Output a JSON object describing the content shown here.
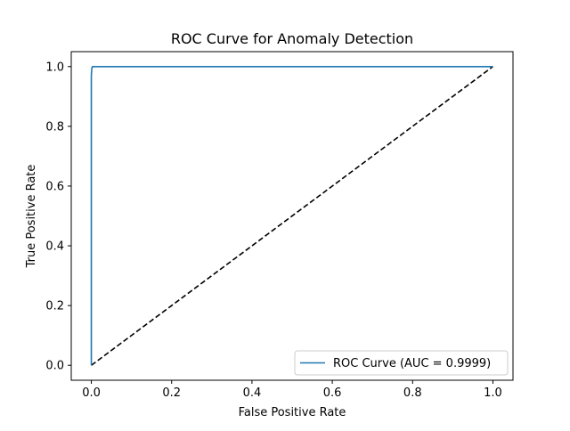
{
  "chart_data": {
    "type": "line",
    "title": "ROC Curve for Anomaly Detection",
    "xlabel": "False Positive Rate",
    "ylabel": "True Positive Rate",
    "xlim": [
      -0.05,
      1.05
    ],
    "ylim": [
      -0.05,
      1.05
    ],
    "xticks": [
      "0.0",
      "0.2",
      "0.4",
      "0.6",
      "0.8",
      "1.0"
    ],
    "yticks": [
      "0.0",
      "0.2",
      "0.4",
      "0.6",
      "0.8",
      "1.0"
    ],
    "grid": false,
    "legend_position": "lower-right",
    "series": [
      {
        "name": "ROC Curve (AUC = 0.9999)",
        "color": "#1f77b4",
        "style": "solid",
        "x": [
          0.0,
          0.0,
          0.001,
          0.002,
          0.003,
          1.0
        ],
        "y": [
          0.0,
          0.97,
          0.99,
          0.998,
          1.0,
          1.0
        ]
      },
      {
        "name": "",
        "color": "#000000",
        "style": "dashed",
        "x": [
          0.0,
          1.0
        ],
        "y": [
          0.0,
          1.0
        ]
      }
    ]
  }
}
